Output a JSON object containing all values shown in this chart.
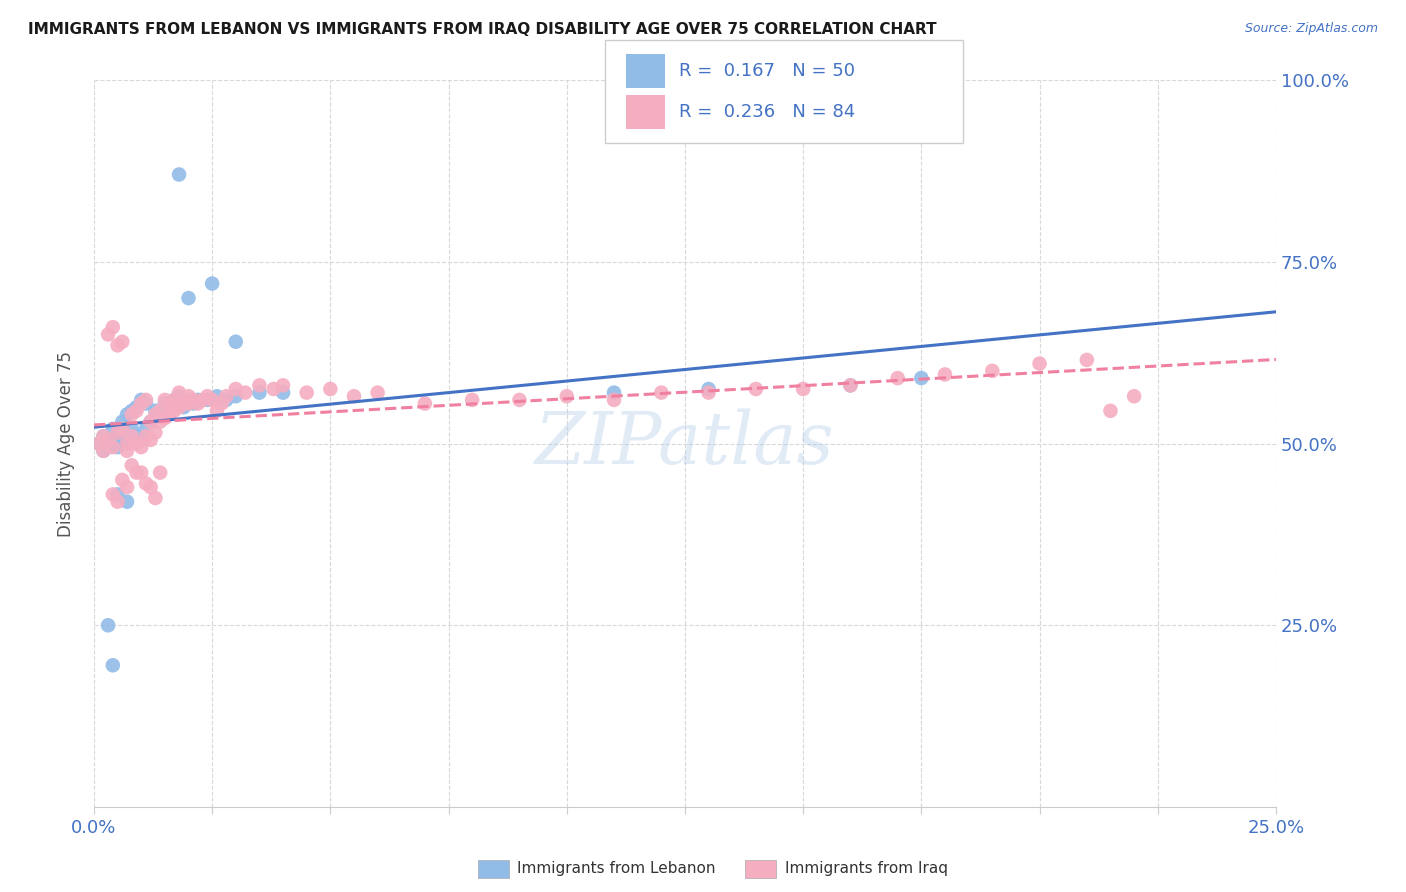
{
  "title": "IMMIGRANTS FROM LEBANON VS IMMIGRANTS FROM IRAQ DISABILITY AGE OVER 75 CORRELATION CHART",
  "source": "Source: ZipAtlas.com",
  "legend_label1": "Immigrants from Lebanon",
  "legend_label2": "Immigrants from Iraq",
  "R1": 0.167,
  "N1": 50,
  "R2": 0.236,
  "N2": 84,
  "color_lebanon": "#92bce8",
  "color_iraq": "#f5adc0",
  "color_lebanon_line": "#4472c4",
  "color_iraq_line": "#f080a0",
  "color_text_blue": "#4472c4",
  "color_title": "#1a1a1a",
  "xmin": 0.0,
  "xmax": 0.25,
  "ymin": 0.0,
  "ymax": 1.0,
  "watermark": "ZIPatlas",
  "grid_color": "#d8d8d8",
  "lebanon_x": [
    0.001,
    0.002,
    0.002,
    0.003,
    0.003,
    0.004,
    0.004,
    0.005,
    0.005,
    0.006,
    0.006,
    0.007,
    0.007,
    0.008,
    0.008,
    0.009,
    0.009,
    0.01,
    0.01,
    0.011,
    0.011,
    0.012,
    0.013,
    0.014,
    0.015,
    0.016,
    0.017,
    0.018,
    0.019,
    0.02,
    0.021,
    0.022,
    0.024,
    0.026,
    0.028,
    0.03,
    0.035,
    0.04,
    0.018,
    0.02,
    0.025,
    0.03,
    0.003,
    0.004,
    0.11,
    0.13,
    0.16,
    0.175,
    0.005,
    0.007
  ],
  "lebanon_y": [
    0.5,
    0.51,
    0.49,
    0.505,
    0.495,
    0.52,
    0.5,
    0.515,
    0.495,
    0.51,
    0.53,
    0.5,
    0.54,
    0.52,
    0.545,
    0.51,
    0.55,
    0.505,
    0.56,
    0.52,
    0.555,
    0.53,
    0.545,
    0.54,
    0.555,
    0.55,
    0.56,
    0.565,
    0.55,
    0.56,
    0.555,
    0.56,
    0.56,
    0.565,
    0.56,
    0.565,
    0.57,
    0.57,
    0.87,
    0.7,
    0.72,
    0.64,
    0.25,
    0.195,
    0.57,
    0.575,
    0.58,
    0.59,
    0.43,
    0.42
  ],
  "iraq_x": [
    0.001,
    0.002,
    0.002,
    0.003,
    0.003,
    0.004,
    0.004,
    0.005,
    0.005,
    0.006,
    0.006,
    0.007,
    0.007,
    0.008,
    0.008,
    0.009,
    0.009,
    0.01,
    0.01,
    0.011,
    0.011,
    0.012,
    0.012,
    0.013,
    0.013,
    0.014,
    0.014,
    0.015,
    0.015,
    0.016,
    0.016,
    0.017,
    0.017,
    0.018,
    0.018,
    0.019,
    0.019,
    0.02,
    0.02,
    0.021,
    0.022,
    0.023,
    0.024,
    0.025,
    0.026,
    0.027,
    0.028,
    0.03,
    0.032,
    0.035,
    0.038,
    0.04,
    0.045,
    0.05,
    0.055,
    0.06,
    0.07,
    0.08,
    0.09,
    0.1,
    0.11,
    0.12,
    0.13,
    0.14,
    0.15,
    0.16,
    0.17,
    0.18,
    0.19,
    0.2,
    0.21,
    0.22,
    0.004,
    0.005,
    0.006,
    0.007,
    0.008,
    0.009,
    0.01,
    0.011,
    0.012,
    0.013,
    0.014,
    0.215
  ],
  "iraq_y": [
    0.5,
    0.51,
    0.49,
    0.505,
    0.65,
    0.495,
    0.66,
    0.515,
    0.635,
    0.52,
    0.64,
    0.5,
    0.49,
    0.51,
    0.54,
    0.5,
    0.545,
    0.495,
    0.555,
    0.51,
    0.56,
    0.505,
    0.53,
    0.515,
    0.54,
    0.53,
    0.545,
    0.535,
    0.56,
    0.54,
    0.555,
    0.545,
    0.56,
    0.55,
    0.57,
    0.555,
    0.56,
    0.555,
    0.565,
    0.56,
    0.555,
    0.56,
    0.565,
    0.56,
    0.545,
    0.555,
    0.565,
    0.575,
    0.57,
    0.58,
    0.575,
    0.58,
    0.57,
    0.575,
    0.565,
    0.57,
    0.555,
    0.56,
    0.56,
    0.565,
    0.56,
    0.57,
    0.57,
    0.575,
    0.575,
    0.58,
    0.59,
    0.595,
    0.6,
    0.61,
    0.615,
    0.565,
    0.43,
    0.42,
    0.45,
    0.44,
    0.47,
    0.46,
    0.46,
    0.445,
    0.44,
    0.425,
    0.46,
    0.545
  ]
}
